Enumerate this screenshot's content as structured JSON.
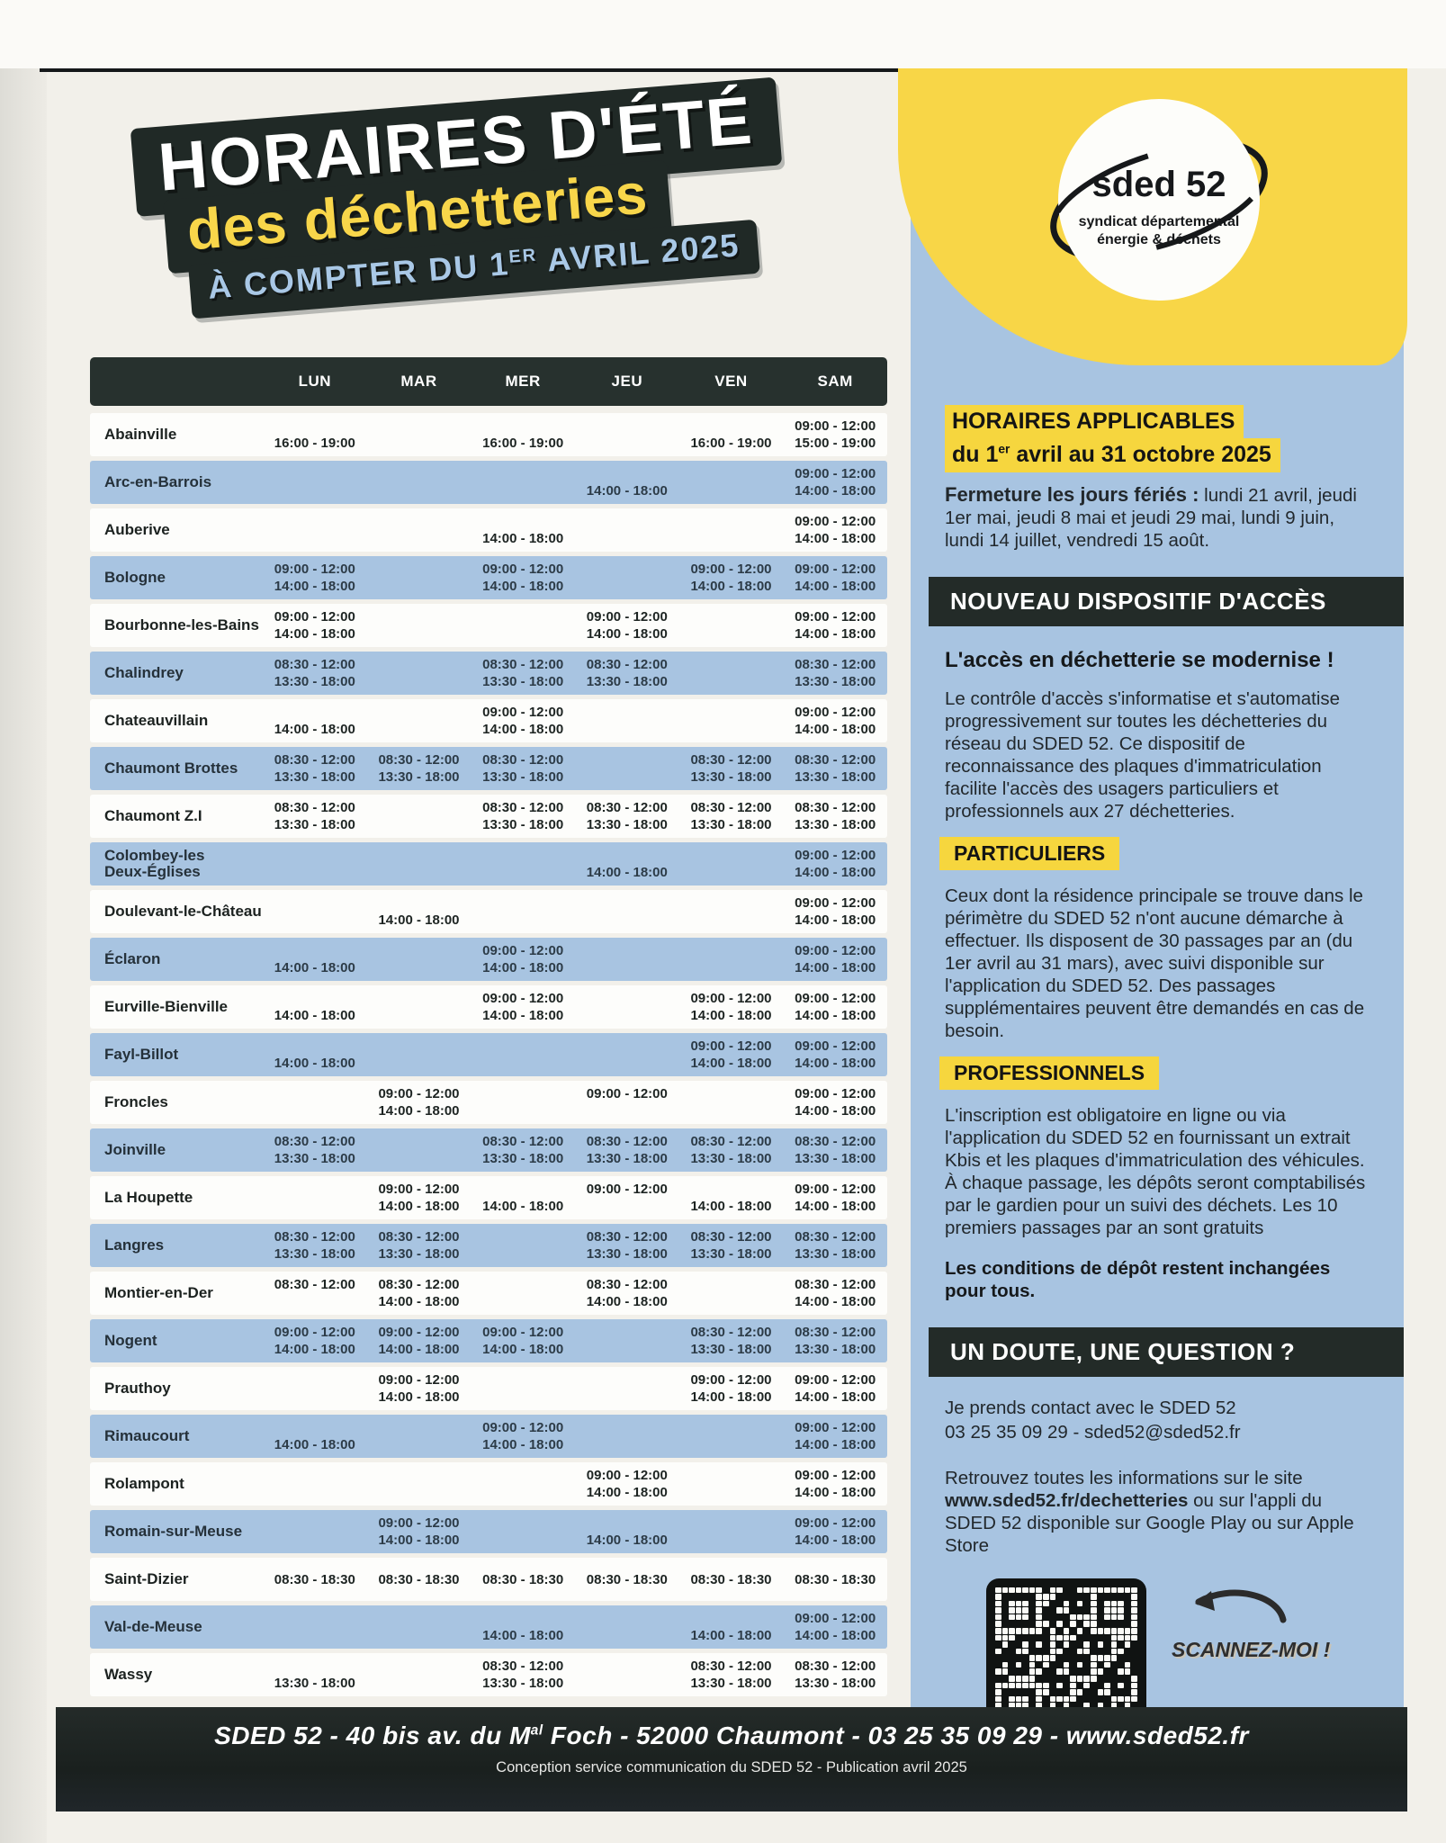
{
  "title": {
    "line1": "HORAIRES D'ÉTÉ",
    "line2": "des déchetteries",
    "line3a": "À COMPTER DU 1",
    "line3sup": "ER",
    "line3b": " AVRIL 2025"
  },
  "logo": {
    "name": "sded 52",
    "subtitle1": "syndicat départemental",
    "subtitle2": "énergie & déchets"
  },
  "schedule": {
    "days": [
      "LUN",
      "MAR",
      "MER",
      "JEU",
      "VEN",
      "SAM"
    ],
    "rows": [
      {
        "location": "Abainville",
        "cells": [
          [
            "",
            "16:00 - 19:00"
          ],
          [
            "",
            ""
          ],
          [
            "",
            "16:00 - 19:00"
          ],
          [
            "",
            ""
          ],
          [
            "",
            "16:00 - 19:00"
          ],
          [
            "09:00 - 12:00",
            "15:00 - 19:00"
          ]
        ]
      },
      {
        "location": "Arc-en-Barrois",
        "cells": [
          [
            "",
            ""
          ],
          [
            "",
            ""
          ],
          [
            "",
            ""
          ],
          [
            "",
            "14:00 - 18:00"
          ],
          [
            "",
            ""
          ],
          [
            "09:00 - 12:00",
            "14:00 - 18:00"
          ]
        ]
      },
      {
        "location": "Auberive",
        "cells": [
          [
            "",
            ""
          ],
          [
            "",
            ""
          ],
          [
            "",
            "14:00 - 18:00"
          ],
          [
            "",
            ""
          ],
          [
            "",
            ""
          ],
          [
            "09:00 - 12:00",
            "14:00 - 18:00"
          ]
        ]
      },
      {
        "location": "Bologne",
        "cells": [
          [
            "09:00 - 12:00",
            "14:00 - 18:00"
          ],
          [
            "",
            ""
          ],
          [
            "09:00 - 12:00",
            "14:00 - 18:00"
          ],
          [
            "",
            ""
          ],
          [
            "09:00 - 12:00",
            "14:00 - 18:00"
          ],
          [
            "09:00 - 12:00",
            "14:00 - 18:00"
          ]
        ]
      },
      {
        "location": "Bourbonne-les-Bains",
        "cells": [
          [
            "09:00 - 12:00",
            "14:00 - 18:00"
          ],
          [
            "",
            ""
          ],
          [
            "",
            ""
          ],
          [
            "09:00 - 12:00",
            "14:00 - 18:00"
          ],
          [
            "",
            ""
          ],
          [
            "09:00 - 12:00",
            "14:00 - 18:00"
          ]
        ]
      },
      {
        "location": "Chalindrey",
        "cells": [
          [
            "08:30 - 12:00",
            "13:30 - 18:00"
          ],
          [
            "",
            ""
          ],
          [
            "08:30 - 12:00",
            "13:30 - 18:00"
          ],
          [
            "08:30 - 12:00",
            "13:30 - 18:00"
          ],
          [
            "",
            ""
          ],
          [
            "08:30 - 12:00",
            "13:30 - 18:00"
          ]
        ]
      },
      {
        "location": "Chateauvillain",
        "cells": [
          [
            "",
            "14:00 - 18:00"
          ],
          [
            "",
            ""
          ],
          [
            "09:00 - 12:00",
            "14:00 - 18:00"
          ],
          [
            "",
            ""
          ],
          [
            "",
            ""
          ],
          [
            "09:00 - 12:00",
            "14:00 - 18:00"
          ]
        ]
      },
      {
        "location": "Chaumont Brottes",
        "cells": [
          [
            "08:30 - 12:00",
            "13:30 - 18:00"
          ],
          [
            "08:30 - 12:00",
            "13:30 - 18:00"
          ],
          [
            "08:30 - 12:00",
            "13:30 - 18:00"
          ],
          [
            "",
            ""
          ],
          [
            "08:30 - 12:00",
            "13:30 - 18:00"
          ],
          [
            "08:30 - 12:00",
            "13:30 - 18:00"
          ]
        ]
      },
      {
        "location": "Chaumont Z.I",
        "cells": [
          [
            "08:30 - 12:00",
            "13:30 - 18:00"
          ],
          [
            "",
            ""
          ],
          [
            "08:30 - 12:00",
            "13:30 - 18:00"
          ],
          [
            "08:30 - 12:00",
            "13:30 - 18:00"
          ],
          [
            "08:30 - 12:00",
            "13:30 - 18:00"
          ],
          [
            "08:30 - 12:00",
            "13:30 - 18:00"
          ]
        ]
      },
      {
        "location": "Colombey-les\nDeux-Églises",
        "cells": [
          [
            "",
            ""
          ],
          [
            "",
            ""
          ],
          [
            "",
            ""
          ],
          [
            "",
            "14:00 - 18:00"
          ],
          [
            "",
            ""
          ],
          [
            "09:00 - 12:00",
            "14:00 - 18:00"
          ]
        ]
      },
      {
        "location": "Doulevant-le-Château",
        "cells": [
          [
            "",
            ""
          ],
          [
            "",
            "14:00 - 18:00"
          ],
          [
            "",
            ""
          ],
          [
            "",
            ""
          ],
          [
            "",
            ""
          ],
          [
            "09:00 - 12:00",
            "14:00 - 18:00"
          ]
        ]
      },
      {
        "location": "Éclaron",
        "cells": [
          [
            "",
            "14:00 - 18:00"
          ],
          [
            "",
            ""
          ],
          [
            "09:00 - 12:00",
            "14:00 - 18:00"
          ],
          [
            "",
            ""
          ],
          [
            "",
            ""
          ],
          [
            "09:00 - 12:00",
            "14:00 - 18:00"
          ]
        ]
      },
      {
        "location": "Eurville-Bienville",
        "cells": [
          [
            "",
            "14:00 - 18:00"
          ],
          [
            "",
            ""
          ],
          [
            "09:00 - 12:00",
            "14:00 - 18:00"
          ],
          [
            "",
            ""
          ],
          [
            "09:00 - 12:00",
            "14:00 - 18:00"
          ],
          [
            "09:00 - 12:00",
            "14:00 - 18:00"
          ]
        ]
      },
      {
        "location": "Fayl-Billot",
        "cells": [
          [
            "",
            "14:00 - 18:00"
          ],
          [
            "",
            ""
          ],
          [
            "",
            ""
          ],
          [
            "",
            ""
          ],
          [
            "09:00 - 12:00",
            "14:00 - 18:00"
          ],
          [
            "09:00 - 12:00",
            "14:00 - 18:00"
          ]
        ]
      },
      {
        "location": "Froncles",
        "cells": [
          [
            "",
            ""
          ],
          [
            "09:00 - 12:00",
            "14:00 - 18:00"
          ],
          [
            "",
            ""
          ],
          [
            "09:00 - 12:00",
            ""
          ],
          [
            "",
            ""
          ],
          [
            "09:00 - 12:00",
            "14:00 - 18:00"
          ]
        ]
      },
      {
        "location": "Joinville",
        "cells": [
          [
            "08:30 - 12:00",
            "13:30 - 18:00"
          ],
          [
            "",
            ""
          ],
          [
            "08:30 - 12:00",
            "13:30 - 18:00"
          ],
          [
            "08:30 - 12:00",
            "13:30 - 18:00"
          ],
          [
            "08:30 - 12:00",
            "13:30 - 18:00"
          ],
          [
            "08:30 - 12:00",
            "13:30 - 18:00"
          ]
        ]
      },
      {
        "location": "La Houpette",
        "cells": [
          [
            "",
            ""
          ],
          [
            "09:00 - 12:00",
            "14:00 - 18:00"
          ],
          [
            "",
            "14:00 - 18:00"
          ],
          [
            "09:00 - 12:00",
            ""
          ],
          [
            "",
            "14:00 - 18:00"
          ],
          [
            "09:00 - 12:00",
            "14:00 - 18:00"
          ]
        ]
      },
      {
        "location": "Langres",
        "cells": [
          [
            "08:30 - 12:00",
            "13:30 - 18:00"
          ],
          [
            "08:30 - 12:00",
            "13:30 - 18:00"
          ],
          [
            "",
            ""
          ],
          [
            "08:30 - 12:00",
            "13:30 - 18:00"
          ],
          [
            "08:30 - 12:00",
            "13:30 - 18:00"
          ],
          [
            "08:30 - 12:00",
            "13:30 - 18:00"
          ]
        ]
      },
      {
        "location": "Montier-en-Der",
        "cells": [
          [
            "08:30 - 12:00",
            ""
          ],
          [
            "08:30 - 12:00",
            "14:00 - 18:00"
          ],
          [
            "",
            ""
          ],
          [
            "08:30 - 12:00",
            "14:00 - 18:00"
          ],
          [
            "",
            ""
          ],
          [
            "08:30 - 12:00",
            "14:00 - 18:00"
          ]
        ]
      },
      {
        "location": "Nogent",
        "cells": [
          [
            "09:00 - 12:00",
            "14:00 - 18:00"
          ],
          [
            "09:00 - 12:00",
            "14:00 - 18:00"
          ],
          [
            "09:00 - 12:00",
            "14:00 - 18:00"
          ],
          [
            "",
            ""
          ],
          [
            "08:30 - 12:00",
            "13:30 - 18:00"
          ],
          [
            "08:30 - 12:00",
            "13:30 - 18:00"
          ]
        ]
      },
      {
        "location": "Prauthoy",
        "cells": [
          [
            "",
            ""
          ],
          [
            "09:00 - 12:00",
            "14:00 - 18:00"
          ],
          [
            "",
            ""
          ],
          [
            "",
            ""
          ],
          [
            "09:00 - 12:00",
            "14:00 - 18:00"
          ],
          [
            "09:00 - 12:00",
            "14:00 - 18:00"
          ]
        ]
      },
      {
        "location": "Rimaucourt",
        "cells": [
          [
            "",
            "14:00 - 18:00"
          ],
          [
            "",
            ""
          ],
          [
            "09:00 - 12:00",
            "14:00 - 18:00"
          ],
          [
            "",
            ""
          ],
          [
            "",
            ""
          ],
          [
            "09:00 - 12:00",
            "14:00 - 18:00"
          ]
        ]
      },
      {
        "location": "Rolampont",
        "cells": [
          [
            "",
            ""
          ],
          [
            "",
            ""
          ],
          [
            "",
            ""
          ],
          [
            "09:00 - 12:00",
            "14:00 - 18:00"
          ],
          [
            "",
            ""
          ],
          [
            "09:00 - 12:00",
            "14:00 - 18:00"
          ]
        ]
      },
      {
        "location": "Romain-sur-Meuse",
        "cells": [
          [
            "",
            ""
          ],
          [
            "09:00 - 12:00",
            "14:00 - 18:00"
          ],
          [
            "",
            ""
          ],
          [
            "",
            "14:00 - 18:00"
          ],
          [
            "",
            ""
          ],
          [
            "09:00 - 12:00",
            "14:00 - 18:00"
          ]
        ]
      },
      {
        "location": "Saint-Dizier",
        "cells": [
          [
            "08:30 - 18:30",
            ""
          ],
          [
            "08:30 - 18:30",
            ""
          ],
          [
            "08:30 - 18:30",
            ""
          ],
          [
            "08:30 - 18:30",
            ""
          ],
          [
            "08:30 - 18:30",
            ""
          ],
          [
            "08:30 - 18:30",
            ""
          ]
        ]
      },
      {
        "location": "Val-de-Meuse",
        "cells": [
          [
            "",
            ""
          ],
          [
            "",
            ""
          ],
          [
            "",
            "14:00 - 18:00"
          ],
          [
            "",
            ""
          ],
          [
            "",
            "14:00 - 18:00"
          ],
          [
            "09:00 - 12:00",
            "14:00 - 18:00"
          ]
        ]
      },
      {
        "location": "Wassy",
        "cells": [
          [
            "",
            "13:30 - 18:00"
          ],
          [
            "",
            ""
          ],
          [
            "08:30 - 12:00",
            "13:30 - 18:00"
          ],
          [
            "",
            ""
          ],
          [
            "08:30 - 12:00",
            "13:30 - 18:00"
          ],
          [
            "08:30 - 12:00",
            "13:30 - 18:00"
          ]
        ]
      }
    ]
  },
  "sidebar": {
    "hours_title1": "HORAIRES APPLICABLES",
    "hours_title2a": "du 1",
    "hours_title2sup": "er",
    "hours_title2b": " avril au 31 octobre 2025",
    "closed_bold": "Fermeture les jours fériés :",
    "closed_rest": " lundi 21 avril, jeudi 1er mai, jeudi 8 mai et jeudi 29 mai, lundi 9 juin, lundi 14 juillet, vendredi 15 août.",
    "access_header": "NOUVEAU DISPOSITIF D'ACCÈS",
    "access_sub": "L'accès en déchetterie se modernise !",
    "access_text": "Le contrôle d'accès s'informatise et s'automatise progressivement sur toutes les déchetteries du réseau du SDED 52. Ce dispositif de reconnaissance des plaques d'immatriculation facilite l'accès des usagers particuliers et professionnels aux 27 déchetteries.",
    "particuliers_header": "PARTICULIERS",
    "particuliers_text": "Ceux dont la résidence principale se trouve dans le périmètre du SDED 52 n'ont aucune démarche à effectuer. Ils disposent de 30 passages par an (du 1er avril au 31 mars), avec suivi disponible sur l'application du SDED 52. Des passages supplémentaires peuvent être demandés en cas de besoin.",
    "professionnels_header": "PROFESSIONNELS",
    "professionnels_text": "L'inscription est obligatoire en ligne ou via l'application du SDED 52 en fournissant un extrait Kbis et les plaques d'immatriculation des véhicules. À chaque passage, les dépôts seront comptabilisés par le gardien pour un suivi des déchets. Les 10 premiers passages par an sont gratuits",
    "conditions_text": "Les conditions de dépôt restent inchangées pour tous.",
    "question_header": "UN DOUTE, UNE QUESTION ?",
    "contact_line1": "Je prends contact avec le SDED 52",
    "contact_line2": "03 25 35 09 29 - sded52@sded52.fr",
    "info_pre": "Retrouvez toutes les informations sur le site ",
    "info_bold": "www.sded52.fr/dechetteries",
    "info_post": " ou sur l'appli du SDED 52  disponible sur Google Play ou sur Apple Store",
    "scan_label": "SCANNEZ-MOI !"
  },
  "footer": {
    "f1_bold": "SDED 52",
    "f1_mid": " - 40 bis av. du M",
    "f1_sup": "al",
    "f1_end": " Foch - 52000 Chaumont - 03 25 35 09 29 - www.sded52.fr",
    "line2": "Conception service communication du SDED 52 - Publication avril 2025"
  },
  "colors": {
    "accent_yellow": "#f8d647",
    "accent_blue": "#a8c4e1",
    "dark": "#232b28",
    "page": "#f2f0ea"
  }
}
